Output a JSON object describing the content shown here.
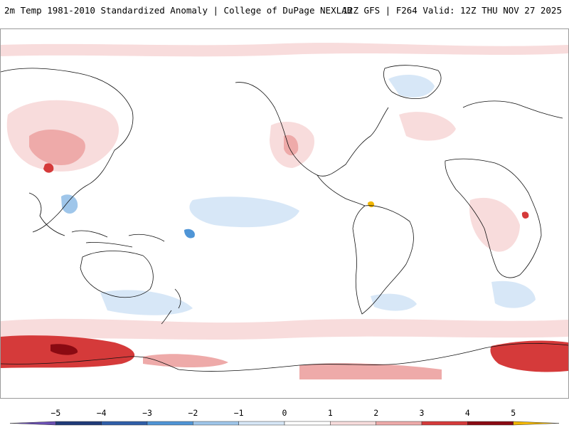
{
  "header": {
    "left_title": "2m Temp 1981-2010 Standardized Anomaly | College of DuPage NEXLAB",
    "right_title": "12Z GFS | F264 Valid: 12Z THU NOV 27 2025"
  },
  "map": {
    "projection": "global cylindrical (Pacific-centered)",
    "field": "2m temperature standardized anomaly"
  },
  "legend": {
    "ticks": [
      {
        "value": -5,
        "label": "−5"
      },
      {
        "value": -4,
        "label": "−4"
      },
      {
        "value": -3,
        "label": "−3"
      },
      {
        "value": -2,
        "label": "−2"
      },
      {
        "value": -1,
        "label": "−1"
      },
      {
        "value": 0,
        "label": "0"
      },
      {
        "value": 1,
        "label": "1"
      },
      {
        "value": 2,
        "label": "2"
      },
      {
        "value": 3,
        "label": "3"
      },
      {
        "value": 4,
        "label": "4"
      },
      {
        "value": 5,
        "label": "5"
      }
    ],
    "bins": [
      {
        "from": -6,
        "to": -5,
        "color": "#6a4fb3"
      },
      {
        "from": -5,
        "to": -4,
        "color": "#1f3a78"
      },
      {
        "from": -4,
        "to": -3,
        "color": "#2f5ea8"
      },
      {
        "from": -3,
        "to": -2,
        "color": "#4f95d6"
      },
      {
        "from": -2,
        "to": -1,
        "color": "#9fc6ea"
      },
      {
        "from": -1,
        "to": 0,
        "color": "#d7e7f7"
      },
      {
        "from": 0,
        "to": 1,
        "color": "#ffffff"
      },
      {
        "from": 1,
        "to": 2,
        "color": "#f8dcdc"
      },
      {
        "from": 2,
        "to": 3,
        "color": "#eeaaa9"
      },
      {
        "from": 3,
        "to": 4,
        "color": "#d53a3a"
      },
      {
        "from": 4,
        "to": 5,
        "color": "#8a0a12"
      },
      {
        "from": 5,
        "to": 6,
        "color": "#f2b600"
      }
    ]
  },
  "colors": {
    "warm_light": "#f8dcdc",
    "warm_mid": "#eeaaa9",
    "warm_strong": "#d53a3a",
    "warm_extreme": "#8a0a12",
    "cool_light": "#d7e7f7",
    "cool_mid": "#9fc6ea",
    "cool_strong": "#4f95d6",
    "coast": "#111111"
  }
}
